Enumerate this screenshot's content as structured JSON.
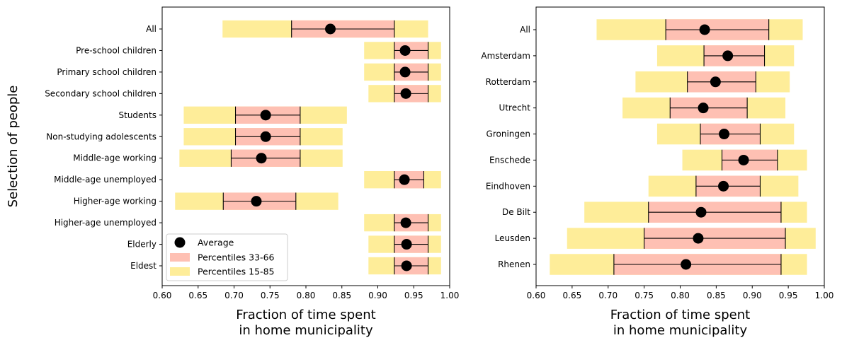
{
  "chart_data": [
    {
      "type": "range-bar",
      "ylabel": "Selection of people",
      "xlabel_lines": [
        "Fraction of time spent",
        "in home municipality"
      ],
      "xlim": [
        0.6,
        1.0
      ],
      "xticks": [
        "0.60",
        "0.65",
        "0.70",
        "0.75",
        "0.80",
        "0.85",
        "0.90",
        "0.95",
        "1.00"
      ],
      "categories": [
        "All",
        "Pre-school children",
        "Primary school children",
        "Secondary school children",
        "Students",
        "Non-studying adolescents",
        "Middle-age working",
        "Middle-age unemployed",
        "Higher-age working",
        "Higher-age unemployed",
        "Elderly",
        "Eldest"
      ],
      "p15_85": [
        [
          0.684,
          0.97
        ],
        [
          0.881,
          0.988
        ],
        [
          0.881,
          0.988
        ],
        [
          0.887,
          0.988
        ],
        [
          0.63,
          0.857
        ],
        [
          0.63,
          0.851
        ],
        [
          0.624,
          0.851
        ],
        [
          0.881,
          0.988
        ],
        [
          0.618,
          0.845
        ],
        [
          0.881,
          0.988
        ],
        [
          0.887,
          0.988
        ],
        [
          0.887,
          0.988
        ]
      ],
      "p33_66": [
        [
          0.78,
          0.923
        ],
        [
          0.923,
          0.97
        ],
        [
          0.923,
          0.97
        ],
        [
          0.923,
          0.97
        ],
        [
          0.702,
          0.792
        ],
        [
          0.702,
          0.792
        ],
        [
          0.696,
          0.792
        ],
        [
          0.923,
          0.964
        ],
        [
          0.685,
          0.786
        ],
        [
          0.923,
          0.97
        ],
        [
          0.923,
          0.97
        ],
        [
          0.923,
          0.97
        ]
      ],
      "average": [
        0.834,
        0.938,
        0.938,
        0.939,
        0.744,
        0.744,
        0.738,
        0.937,
        0.731,
        0.939,
        0.94,
        0.94
      ],
      "legend": {
        "position": "lower-left",
        "entries": [
          "Average",
          "Percentiles 33-66",
          "Percentiles 15-85"
        ]
      }
    },
    {
      "type": "range-bar",
      "ylabel": "",
      "xlabel_lines": [
        "Fraction of time spent",
        "in home municipality"
      ],
      "xlim": [
        0.6,
        1.0
      ],
      "xticks": [
        "0.60",
        "0.65",
        "0.70",
        "0.75",
        "0.80",
        "0.85",
        "0.90",
        "0.95",
        "1.00"
      ],
      "categories": [
        "All",
        "Amsterdam",
        "Rotterdam",
        "Utrecht",
        "Groningen",
        "Enschede",
        "Eindhoven",
        "De Bilt",
        "Leusden",
        "Rhenen"
      ],
      "p15_85": [
        [
          0.684,
          0.97
        ],
        [
          0.768,
          0.958
        ],
        [
          0.738,
          0.952
        ],
        [
          0.72,
          0.946
        ],
        [
          0.768,
          0.958
        ],
        [
          0.803,
          0.976
        ],
        [
          0.756,
          0.964
        ],
        [
          0.667,
          0.976
        ],
        [
          0.643,
          0.988
        ],
        [
          0.619,
          0.976
        ]
      ],
      "p33_66": [
        [
          0.78,
          0.923
        ],
        [
          0.833,
          0.917
        ],
        [
          0.81,
          0.905
        ],
        [
          0.786,
          0.893
        ],
        [
          0.828,
          0.911
        ],
        [
          0.858,
          0.935
        ],
        [
          0.822,
          0.911
        ],
        [
          0.756,
          0.94
        ],
        [
          0.75,
          0.946
        ],
        [
          0.708,
          0.94
        ]
      ],
      "average": [
        0.834,
        0.866,
        0.849,
        0.832,
        0.861,
        0.888,
        0.86,
        0.829,
        0.825,
        0.808
      ]
    }
  ],
  "colors": {
    "p15_85": "#feed99",
    "p33_66": "#fec0b3",
    "marker": "#000000"
  }
}
